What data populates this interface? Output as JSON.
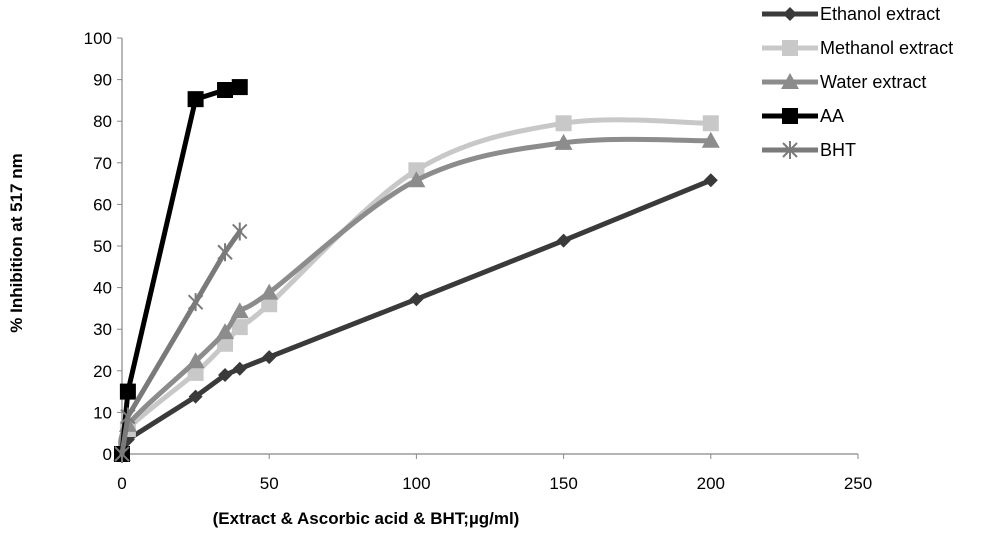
{
  "chart_data": {
    "type": "line",
    "title": "",
    "xlabel": "(Extract & Ascorbic acid & BHT;µg/ml)",
    "ylabel": "% Inhibition at 517 nm",
    "xlim": [
      0,
      250
    ],
    "ylim": [
      0,
      100
    ],
    "x_ticks": [
      0,
      50,
      100,
      150,
      200,
      250
    ],
    "y_ticks": [
      0,
      10,
      20,
      30,
      40,
      50,
      60,
      70,
      80,
      90,
      100
    ],
    "grid": false,
    "legend_position": "top-right",
    "series": [
      {
        "name": "Ethanol extract",
        "color": "#3a3a3a",
        "marker": "diamond",
        "smooth": false,
        "points": [
          [
            0,
            0
          ],
          [
            2,
            3.5
          ],
          [
            25,
            13.8
          ],
          [
            35,
            19
          ],
          [
            40,
            20.5
          ],
          [
            50,
            23.3
          ],
          [
            100,
            37.2
          ],
          [
            150,
            51.3
          ],
          [
            200,
            65.8
          ]
        ]
      },
      {
        "name": "Methanol extract",
        "color": "#c8c8c8",
        "marker": "square",
        "smooth": true,
        "points": [
          [
            0,
            0
          ],
          [
            2,
            6
          ],
          [
            25,
            19.5
          ],
          [
            35,
            26.5
          ],
          [
            40,
            30.5
          ],
          [
            50,
            36
          ],
          [
            100,
            68.2
          ],
          [
            150,
            79.5
          ],
          [
            200,
            79.5
          ]
        ]
      },
      {
        "name": "Water extract",
        "color": "#8c8c8c",
        "marker": "triangle",
        "smooth": true,
        "points": [
          [
            0,
            0
          ],
          [
            2,
            7
          ],
          [
            25,
            22.3
          ],
          [
            35,
            29.3
          ],
          [
            40,
            34.3
          ],
          [
            50,
            38.8
          ],
          [
            100,
            65.8
          ],
          [
            150,
            74.8
          ],
          [
            200,
            75.3
          ]
        ]
      },
      {
        "name": "AA",
        "color": "#000000",
        "marker": "square",
        "smooth": false,
        "points": [
          [
            0,
            0
          ],
          [
            2,
            15
          ],
          [
            25,
            85.3
          ],
          [
            35,
            87.5
          ],
          [
            40,
            88.2
          ]
        ]
      },
      {
        "name": "BHT",
        "color": "#7a7a7a",
        "marker": "star",
        "smooth": false,
        "points": [
          [
            0,
            0
          ],
          [
            2,
            9
          ],
          [
            25,
            36.5
          ],
          [
            35,
            48.5
          ],
          [
            40,
            53.5
          ]
        ]
      }
    ]
  }
}
